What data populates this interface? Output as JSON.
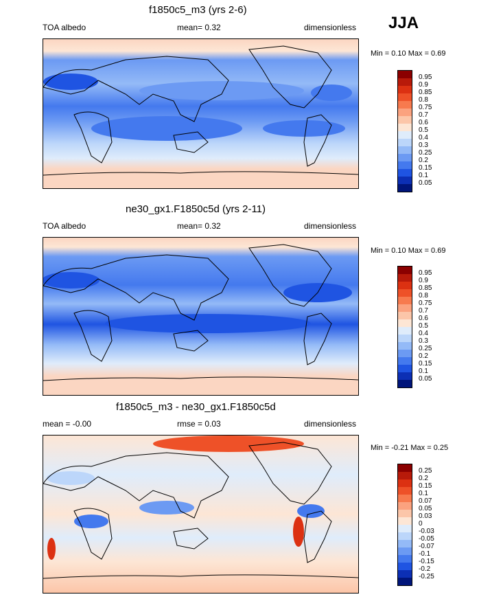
{
  "season": "JJA",
  "panels": [
    {
      "title": "f1850c5_m3 (yrs 2-6)",
      "left_label": "TOA albedo",
      "center_label": "mean=   0.32",
      "right_label": "dimensionless",
      "minmax": "Min =   0.10 Max =   0.69",
      "levels": [
        "0.95",
        "0.9",
        "0.85",
        "0.8",
        "0.75",
        "0.7",
        "0.6",
        "0.5",
        "0.4",
        "0.3",
        "0.25",
        "0.2",
        "0.15",
        "0.1",
        "0.05"
      ]
    },
    {
      "title": "ne30_gx1.F1850c5d (yrs 2-11)",
      "left_label": "TOA albedo",
      "center_label": "mean=   0.32",
      "right_label": "dimensionless",
      "minmax": "Min =   0.10 Max =   0.69",
      "levels": [
        "0.95",
        "0.9",
        "0.85",
        "0.8",
        "0.75",
        "0.7",
        "0.6",
        "0.5",
        "0.4",
        "0.3",
        "0.25",
        "0.2",
        "0.15",
        "0.1",
        "0.05"
      ]
    },
    {
      "title": "f1850c5_m3 - ne30_gx1.F1850c5d",
      "left_label": "mean =  -0.00",
      "center_label": "rmse =   0.03",
      "right_label": "dimensionless",
      "minmax": "Min =  -0.21 Max =   0.25",
      "levels": [
        "0.25",
        "0.2",
        "0.15",
        "0.1",
        "0.07",
        "0.05",
        "0.03",
        "0",
        "-0.03",
        "-0.05",
        "-0.07",
        "-0.1",
        "-0.15",
        "-0.2",
        "-0.25"
      ]
    }
  ],
  "colors": {
    "colorbar_top_to_bottom": [
      "#8b0000",
      "#b81a0a",
      "#dc3112",
      "#ee5128",
      "#f77a4e",
      "#fba27f",
      "#fcc6a9",
      "#fde6d5",
      "#dfecfb",
      "#bcd6fa",
      "#94baf7",
      "#6c9af3",
      "#4479ee",
      "#1f54e2",
      "#0c2fb4",
      "#00157a"
    ],
    "land_outline": "#000000",
    "ocean_mid_blue": "#5f8ef2",
    "ocean_deep_blue": "#2f5ee6",
    "pale_blue": "#d8e8fb",
    "light_salmon": "#fbd6c2"
  }
}
